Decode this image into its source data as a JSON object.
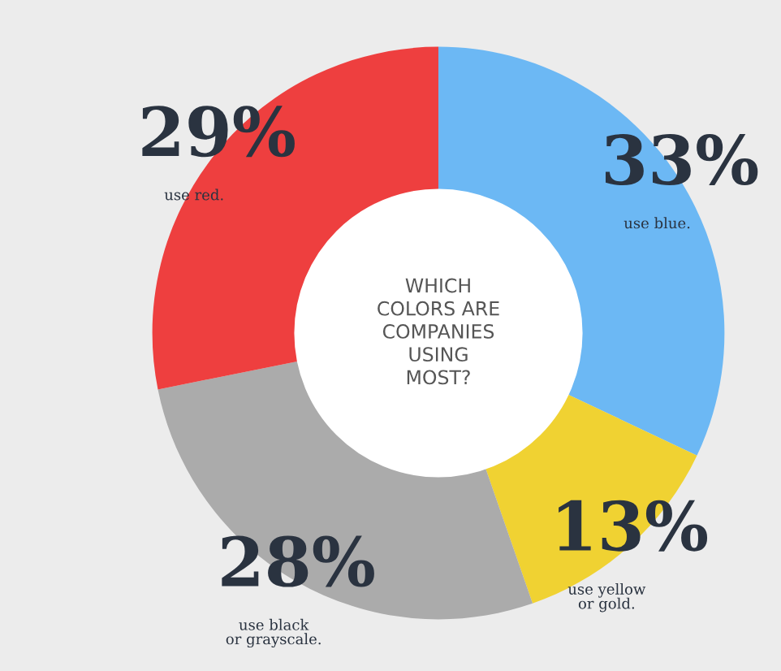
{
  "chart_data": {
    "type": "donut",
    "title": "WHICH\nCOLORS ARE\nCOMPANIES\nUSING\nMOST?",
    "categories": [
      "use blue.",
      "use yellow\nor gold.",
      "use black\nor grayscale.",
      "use red."
    ],
    "values": [
      33,
      13,
      28,
      29
    ],
    "colors": [
      "#6cb8f4",
      "#f0d232",
      "#ababab",
      "#ee3f3f"
    ],
    "value_labels": [
      "33%",
      "13%",
      "28%",
      "29%"
    ],
    "legend": false
  }
}
